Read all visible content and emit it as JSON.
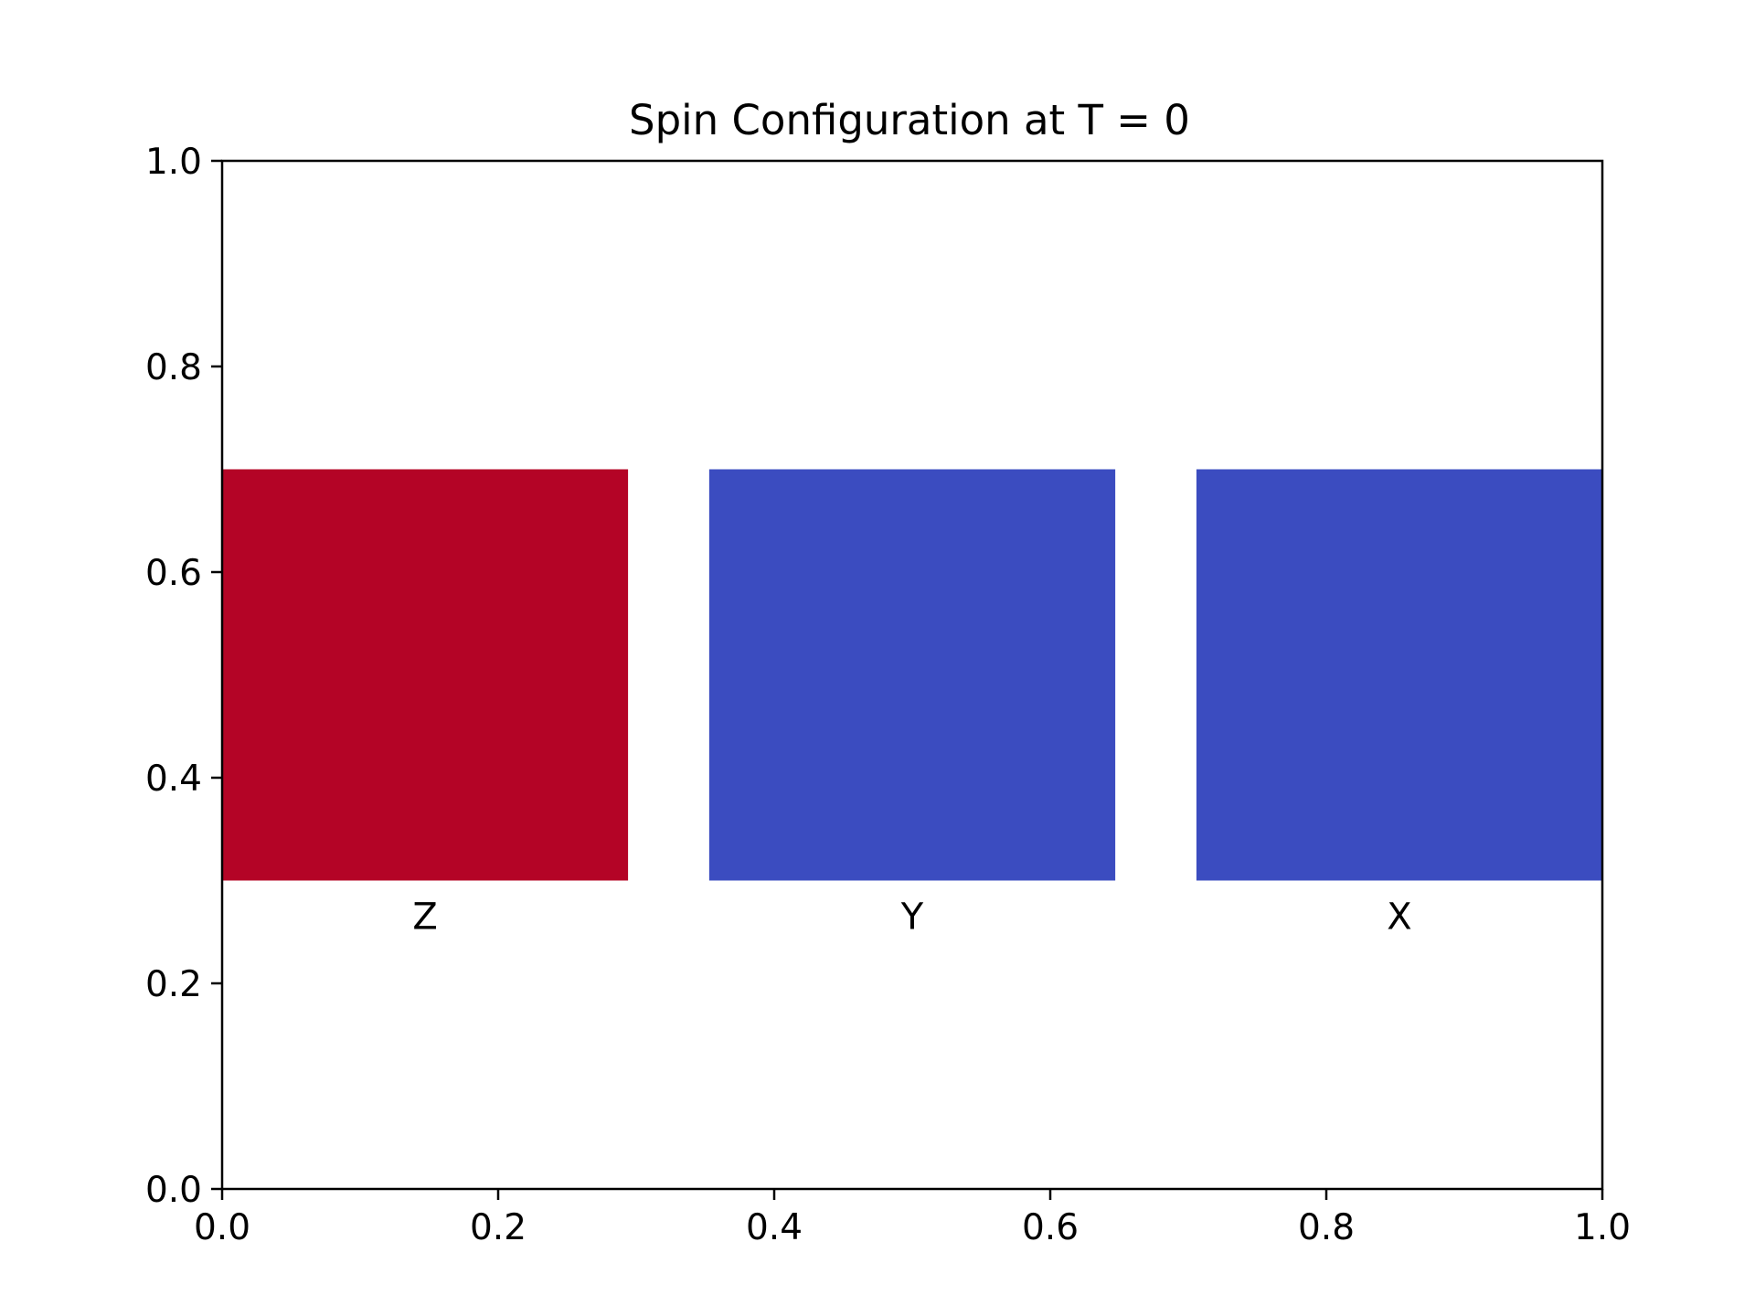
{
  "chart_data": {
    "type": "bar",
    "title": "Spin Configuration at T = 0",
    "xlabel": "",
    "ylabel": "",
    "xlim": [
      0,
      1
    ],
    "ylim": [
      0,
      1
    ],
    "xticks": [
      "0.0",
      "0.2",
      "0.4",
      "0.6",
      "0.8",
      "1.0"
    ],
    "yticks": [
      "0.0",
      "0.2",
      "0.4",
      "0.6",
      "0.8",
      "1.0"
    ],
    "grid": false,
    "legend": "none",
    "cells": [
      {
        "label": "Z",
        "x0": 0.0,
        "x1": 0.2941,
        "y0": 0.3,
        "y1": 0.7,
        "color": "#b40426"
      },
      {
        "label": "Y",
        "x0": 0.3529,
        "x1": 0.6471,
        "y0": 0.3,
        "y1": 0.7,
        "color": "#3b4cc0"
      },
      {
        "label": "X",
        "x0": 0.7059,
        "x1": 1.0,
        "y0": 0.3,
        "y1": 0.7,
        "color": "#3b4cc0"
      }
    ]
  }
}
